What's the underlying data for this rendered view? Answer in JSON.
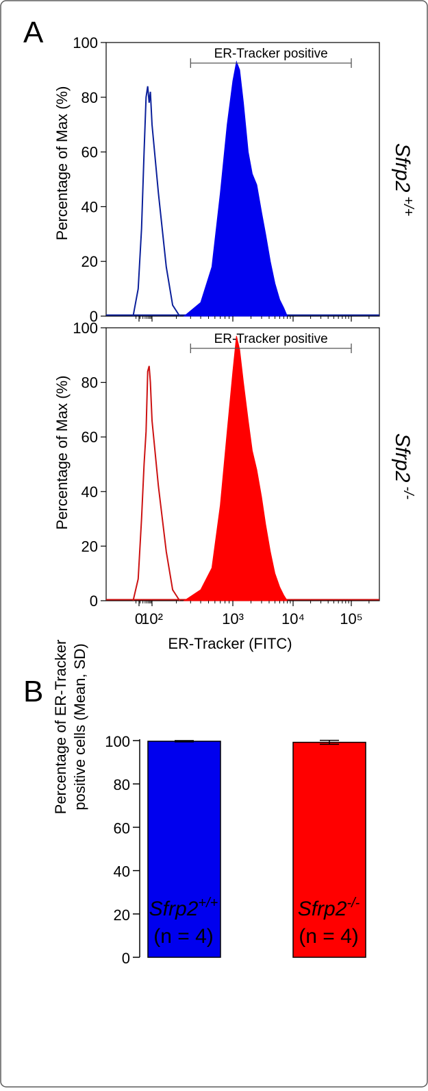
{
  "figure": {
    "panel_a_label": "A",
    "panel_b_label": "B",
    "colors": {
      "wildtype": "#0000ee",
      "knockout": "#ff0000",
      "outline_wildtype": "#0a1f9a",
      "outline_knockout": "#cc1111",
      "frame": "#5a5a5a"
    }
  },
  "chart_data": [
    {
      "type": "area",
      "panel": "A (top)",
      "ylabel": "Percentage of Max (%)",
      "xlabel": "",
      "genotype": "Sfrp2",
      "genotype_sup": "+/+",
      "gate_label": "ER-Tracker positive",
      "gate_range": [
        300,
        100000
      ],
      "x_scale": "biexponential",
      "ylim": [
        0,
        100
      ],
      "yticks": [
        "0",
        "20",
        "40",
        "60",
        "80",
        "100"
      ],
      "series": [
        {
          "style": "outline",
          "x": [
            15,
            25,
            35,
            45,
            55,
            65,
            75,
            85,
            100,
            120,
            150,
            180,
            220
          ],
          "y": [
            0,
            10,
            32,
            60,
            80,
            84,
            78,
            82,
            70,
            45,
            18,
            4,
            0
          ]
        },
        {
          "style": "filled",
          "x": [
            250,
            400,
            550,
            700,
            850,
            1000,
            1150,
            1300,
            1500,
            1800,
            2100,
            2500,
            3000,
            3500,
            4200,
            5000,
            6000,
            7000,
            8000
          ],
          "y": [
            0,
            5,
            18,
            45,
            70,
            86,
            93,
            90,
            78,
            60,
            52,
            48,
            38,
            30,
            20,
            12,
            6,
            3,
            0
          ]
        }
      ]
    },
    {
      "type": "area",
      "panel": "A (bottom)",
      "ylabel": "Percentage of Max (%)",
      "xlabel": "ER-Tracker (FITC)",
      "genotype": "Sfrp2",
      "genotype_sup": "-/-",
      "gate_label": "ER-Tracker positive",
      "gate_range": [
        300,
        100000
      ],
      "x_scale": "biexponential",
      "ylim": [
        0,
        100
      ],
      "yticks": [
        "0",
        "20",
        "40",
        "60",
        "80",
        "100"
      ],
      "xticks": [
        "0",
        "10²",
        "10³",
        "10⁴",
        "10⁵"
      ],
      "series": [
        {
          "style": "outline",
          "x": [
            15,
            25,
            35,
            45,
            55,
            65,
            75,
            85,
            100,
            120,
            150,
            180,
            220
          ],
          "y": [
            0,
            8,
            30,
            50,
            62,
            84,
            86,
            80,
            66,
            42,
            18,
            4,
            0
          ]
        },
        {
          "style": "filled",
          "x": [
            250,
            400,
            550,
            700,
            850,
            1000,
            1150,
            1300,
            1500,
            1800,
            2100,
            2500,
            3000,
            3500,
            4200,
            5000,
            6000,
            7000,
            8000
          ],
          "y": [
            0,
            4,
            12,
            35,
            62,
            84,
            97,
            92,
            80,
            66,
            55,
            48,
            38,
            28,
            18,
            10,
            5,
            2,
            0
          ]
        }
      ]
    },
    {
      "type": "bar",
      "panel": "B",
      "ylabel_line1": "Percentage of ER-Tracker",
      "ylabel_line2": "positive cells (Mean, SD)",
      "xlabel": "",
      "ylim": [
        0,
        100
      ],
      "yticks": [
        "0",
        "20",
        "40",
        "60",
        "80",
        "100"
      ],
      "categories": [
        {
          "name": "Sfrp2",
          "sup": "+/+",
          "n_label": "(n = 4)"
        },
        {
          "name": "Sfrp2",
          "sup": "-/-",
          "n_label": "(n = 4)"
        }
      ],
      "values": [
        99.7,
        99.2
      ],
      "errors": [
        0.3,
        0.9
      ]
    }
  ]
}
